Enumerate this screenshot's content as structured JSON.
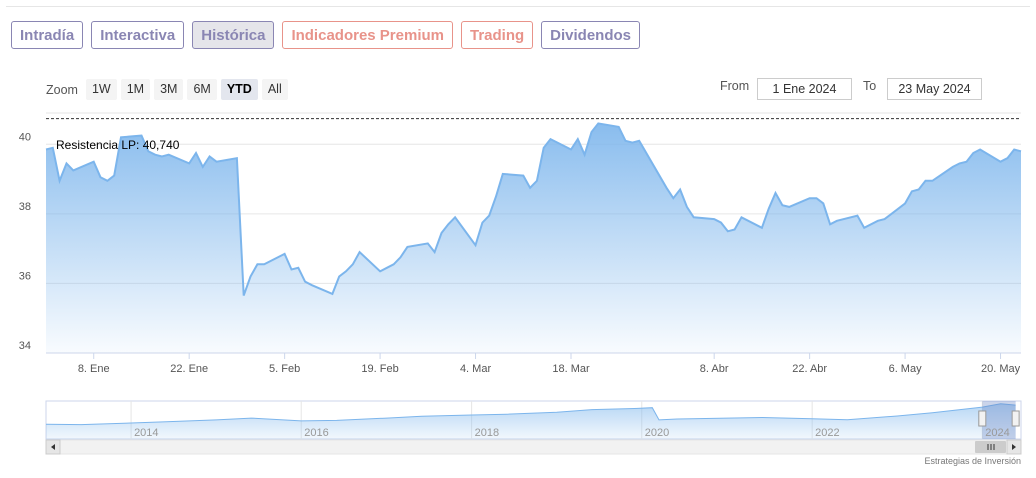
{
  "tabs": [
    {
      "label": "Intradía",
      "color": "#8a86b3",
      "active": false
    },
    {
      "label": "Interactiva",
      "color": "#8a86b3",
      "active": false
    },
    {
      "label": "Histórica",
      "color": "#8a86b3",
      "active": true
    },
    {
      "label": "Indicadores Premium",
      "color": "#e8938a",
      "active": false
    },
    {
      "label": "Trading",
      "color": "#e8938a",
      "active": false
    },
    {
      "label": "Dividendos",
      "color": "#8a86b3",
      "active": false
    }
  ],
  "zoom": {
    "label": "Zoom",
    "options": [
      "1W",
      "1M",
      "3M",
      "6M",
      "YTD",
      "All"
    ],
    "selected": "YTD"
  },
  "range": {
    "from_label": "From",
    "from_value": "1 Ene 2024",
    "to_label": "To",
    "to_value": "23 May 2024"
  },
  "credit": "Estrategias de Inversión",
  "colors": {
    "line": "#7cb5ec",
    "fill_top": "#7cb5ec",
    "navigator_handle": "#f2f2f2"
  },
  "chart_data": {
    "type": "area",
    "title": "",
    "xlabel": "",
    "ylabel": "",
    "ylim": [
      34,
      40.9
    ],
    "yticks": [
      34,
      36,
      38,
      40
    ],
    "grid": true,
    "x_ticks": [
      {
        "label": "8. Ene",
        "date": "2024-01-08"
      },
      {
        "label": "22. Ene",
        "date": "2024-01-22"
      },
      {
        "label": "5. Feb",
        "date": "2024-02-05"
      },
      {
        "label": "19. Feb",
        "date": "2024-02-19"
      },
      {
        "label": "4. Mar",
        "date": "2024-03-04"
      },
      {
        "label": "18. Mar",
        "date": "2024-03-18"
      },
      {
        "label": "8. Abr",
        "date": "2024-04-08"
      },
      {
        "label": "22. Abr",
        "date": "2024-04-22"
      },
      {
        "label": "6. May",
        "date": "2024-05-06"
      },
      {
        "label": "20. May",
        "date": "2024-05-20"
      }
    ],
    "x_range": [
      "2024-01-01",
      "2024-05-23"
    ],
    "resistance": {
      "label": "Resistencia LP: 40,740",
      "value": 40.74
    },
    "series": [
      {
        "points": [
          [
            "2024-01-01",
            39.85
          ],
          [
            "2024-01-02",
            39.9
          ],
          [
            "2024-01-03",
            38.95
          ],
          [
            "2024-01-04",
            39.45
          ],
          [
            "2024-01-05",
            39.25
          ],
          [
            "2024-01-08",
            39.5
          ],
          [
            "2024-01-09",
            39.05
          ],
          [
            "2024-01-10",
            38.95
          ],
          [
            "2024-01-11",
            39.1
          ],
          [
            "2024-01-12",
            40.2
          ],
          [
            "2024-01-15",
            40.25
          ],
          [
            "2024-01-16",
            39.8
          ],
          [
            "2024-01-17",
            39.7
          ],
          [
            "2024-01-18",
            39.65
          ],
          [
            "2024-01-19",
            39.7
          ],
          [
            "2024-01-22",
            39.45
          ],
          [
            "2024-01-23",
            39.75
          ],
          [
            "2024-01-24",
            39.35
          ],
          [
            "2024-01-25",
            39.65
          ],
          [
            "2024-01-26",
            39.5
          ],
          [
            "2024-01-29",
            39.6
          ],
          [
            "2024-01-30",
            35.65
          ],
          [
            "2024-01-31",
            36.2
          ],
          [
            "2024-02-01",
            36.55
          ],
          [
            "2024-02-02",
            36.55
          ],
          [
            "2024-02-05",
            36.85
          ],
          [
            "2024-02-06",
            36.4
          ],
          [
            "2024-02-07",
            36.45
          ],
          [
            "2024-02-08",
            36.05
          ],
          [
            "2024-02-09",
            35.95
          ],
          [
            "2024-02-12",
            35.7
          ],
          [
            "2024-02-13",
            36.2
          ],
          [
            "2024-02-14",
            36.35
          ],
          [
            "2024-02-15",
            36.55
          ],
          [
            "2024-02-16",
            36.9
          ],
          [
            "2024-02-19",
            36.35
          ],
          [
            "2024-02-20",
            36.45
          ],
          [
            "2024-02-21",
            36.55
          ],
          [
            "2024-02-22",
            36.75
          ],
          [
            "2024-02-23",
            37.05
          ],
          [
            "2024-02-26",
            37.15
          ],
          [
            "2024-02-27",
            36.9
          ],
          [
            "2024-02-28",
            37.45
          ],
          [
            "2024-02-29",
            37.7
          ],
          [
            "2024-03-01",
            37.9
          ],
          [
            "2024-03-04",
            37.1
          ],
          [
            "2024-03-05",
            37.75
          ],
          [
            "2024-03-06",
            37.95
          ],
          [
            "2024-03-07",
            38.5
          ],
          [
            "2024-03-08",
            39.15
          ],
          [
            "2024-03-11",
            39.1
          ],
          [
            "2024-03-12",
            38.75
          ],
          [
            "2024-03-13",
            38.95
          ],
          [
            "2024-03-14",
            39.9
          ],
          [
            "2024-03-15",
            40.15
          ],
          [
            "2024-03-18",
            39.85
          ],
          [
            "2024-03-19",
            40.15
          ],
          [
            "2024-03-20",
            39.7
          ],
          [
            "2024-03-21",
            40.35
          ],
          [
            "2024-03-22",
            40.6
          ],
          [
            "2024-03-25",
            40.5
          ],
          [
            "2024-03-26",
            40.1
          ],
          [
            "2024-03-27",
            40.05
          ],
          [
            "2024-03-28",
            40.1
          ],
          [
            "2024-04-01",
            38.75
          ],
          [
            "2024-04-02",
            38.45
          ],
          [
            "2024-04-03",
            38.7
          ],
          [
            "2024-04-04",
            38.2
          ],
          [
            "2024-04-05",
            37.9
          ],
          [
            "2024-04-08",
            37.85
          ],
          [
            "2024-04-09",
            37.75
          ],
          [
            "2024-04-10",
            37.5
          ],
          [
            "2024-04-11",
            37.55
          ],
          [
            "2024-04-12",
            37.9
          ],
          [
            "2024-04-15",
            37.6
          ],
          [
            "2024-04-16",
            38.15
          ],
          [
            "2024-04-17",
            38.6
          ],
          [
            "2024-04-18",
            38.25
          ],
          [
            "2024-04-19",
            38.2
          ],
          [
            "2024-04-22",
            38.45
          ],
          [
            "2024-04-23",
            38.45
          ],
          [
            "2024-04-24",
            38.3
          ],
          [
            "2024-04-25",
            37.7
          ],
          [
            "2024-04-26",
            37.8
          ],
          [
            "2024-04-29",
            37.95
          ],
          [
            "2024-04-30",
            37.6
          ],
          [
            "2024-05-02",
            37.8
          ],
          [
            "2024-05-03",
            37.85
          ],
          [
            "2024-05-06",
            38.3
          ],
          [
            "2024-05-07",
            38.65
          ],
          [
            "2024-05-08",
            38.7
          ],
          [
            "2024-05-09",
            38.95
          ],
          [
            "2024-05-10",
            38.95
          ],
          [
            "2024-05-13",
            39.35
          ],
          [
            "2024-05-14",
            39.45
          ],
          [
            "2024-05-15",
            39.5
          ],
          [
            "2024-05-16",
            39.75
          ],
          [
            "2024-05-17",
            39.85
          ],
          [
            "2024-05-20",
            39.5
          ],
          [
            "2024-05-21",
            39.6
          ],
          [
            "2024-05-22",
            39.85
          ],
          [
            "2024-05-23",
            39.8
          ]
        ]
      }
    ],
    "navigator": {
      "x_labels": [
        "2014",
        "2016",
        "2018",
        "2020",
        "2022",
        "2024"
      ],
      "x_range": [
        "2013-01-01",
        "2024-06-15"
      ],
      "points": [
        [
          "2013-01-01",
          18.5
        ],
        [
          "2013-06-01",
          18.2
        ],
        [
          "2014-01-01",
          19.3
        ],
        [
          "2014-06-01",
          20.2
        ],
        [
          "2015-01-01",
          21.5
        ],
        [
          "2015-06-01",
          22.8
        ],
        [
          "2016-01-01",
          20.8
        ],
        [
          "2016-06-01",
          21.2
        ],
        [
          "2017-01-01",
          22.8
        ],
        [
          "2017-06-01",
          24.1
        ],
        [
          "2018-01-01",
          25.0
        ],
        [
          "2018-06-01",
          25.6
        ],
        [
          "2019-01-01",
          26.9
        ],
        [
          "2019-06-01",
          28.8
        ],
        [
          "2019-12-01",
          29.6
        ],
        [
          "2020-02-15",
          30.2
        ],
        [
          "2020-03-15",
          21.5
        ],
        [
          "2020-06-01",
          22.2
        ],
        [
          "2021-01-01",
          22.8
        ],
        [
          "2021-06-01",
          23.2
        ],
        [
          "2022-01-01",
          22.3
        ],
        [
          "2022-06-01",
          21.6
        ],
        [
          "2023-01-01",
          24.3
        ],
        [
          "2023-06-01",
          26.6
        ],
        [
          "2024-01-01",
          30.6
        ],
        [
          "2024-03-20",
          33.0
        ],
        [
          "2024-05-23",
          32.0
        ]
      ]
    }
  }
}
